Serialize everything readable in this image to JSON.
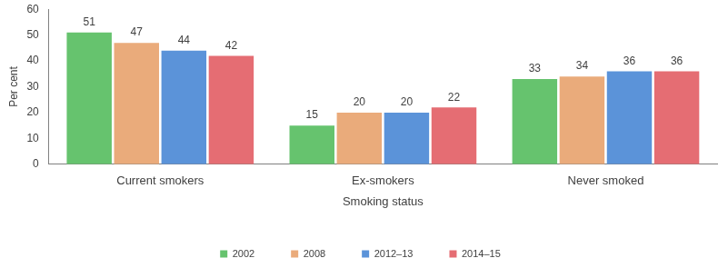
{
  "chart_data": {
    "type": "bar",
    "x_label": "Smoking status",
    "y_label": "Per cent",
    "categories": [
      "Current smokers",
      "Ex-smokers",
      "Never smoked"
    ],
    "series": [
      {
        "name": "2002",
        "color": "#66c36e",
        "values": [
          51,
          15,
          33
        ]
      },
      {
        "name": "2008",
        "color": "#eaab7b",
        "values": [
          47,
          20,
          34
        ]
      },
      {
        "name": "2012–13",
        "color": "#5b93d9",
        "values": [
          44,
          20,
          36
        ]
      },
      {
        "name": "2014–15",
        "color": "#e56d73",
        "values": [
          42,
          22,
          36
        ]
      }
    ],
    "ylim": [
      0,
      60
    ],
    "yticks": [
      0,
      10,
      20,
      30,
      40,
      50,
      60
    ],
    "grid": false,
    "legend": "bottom",
    "data_labels": true
  }
}
